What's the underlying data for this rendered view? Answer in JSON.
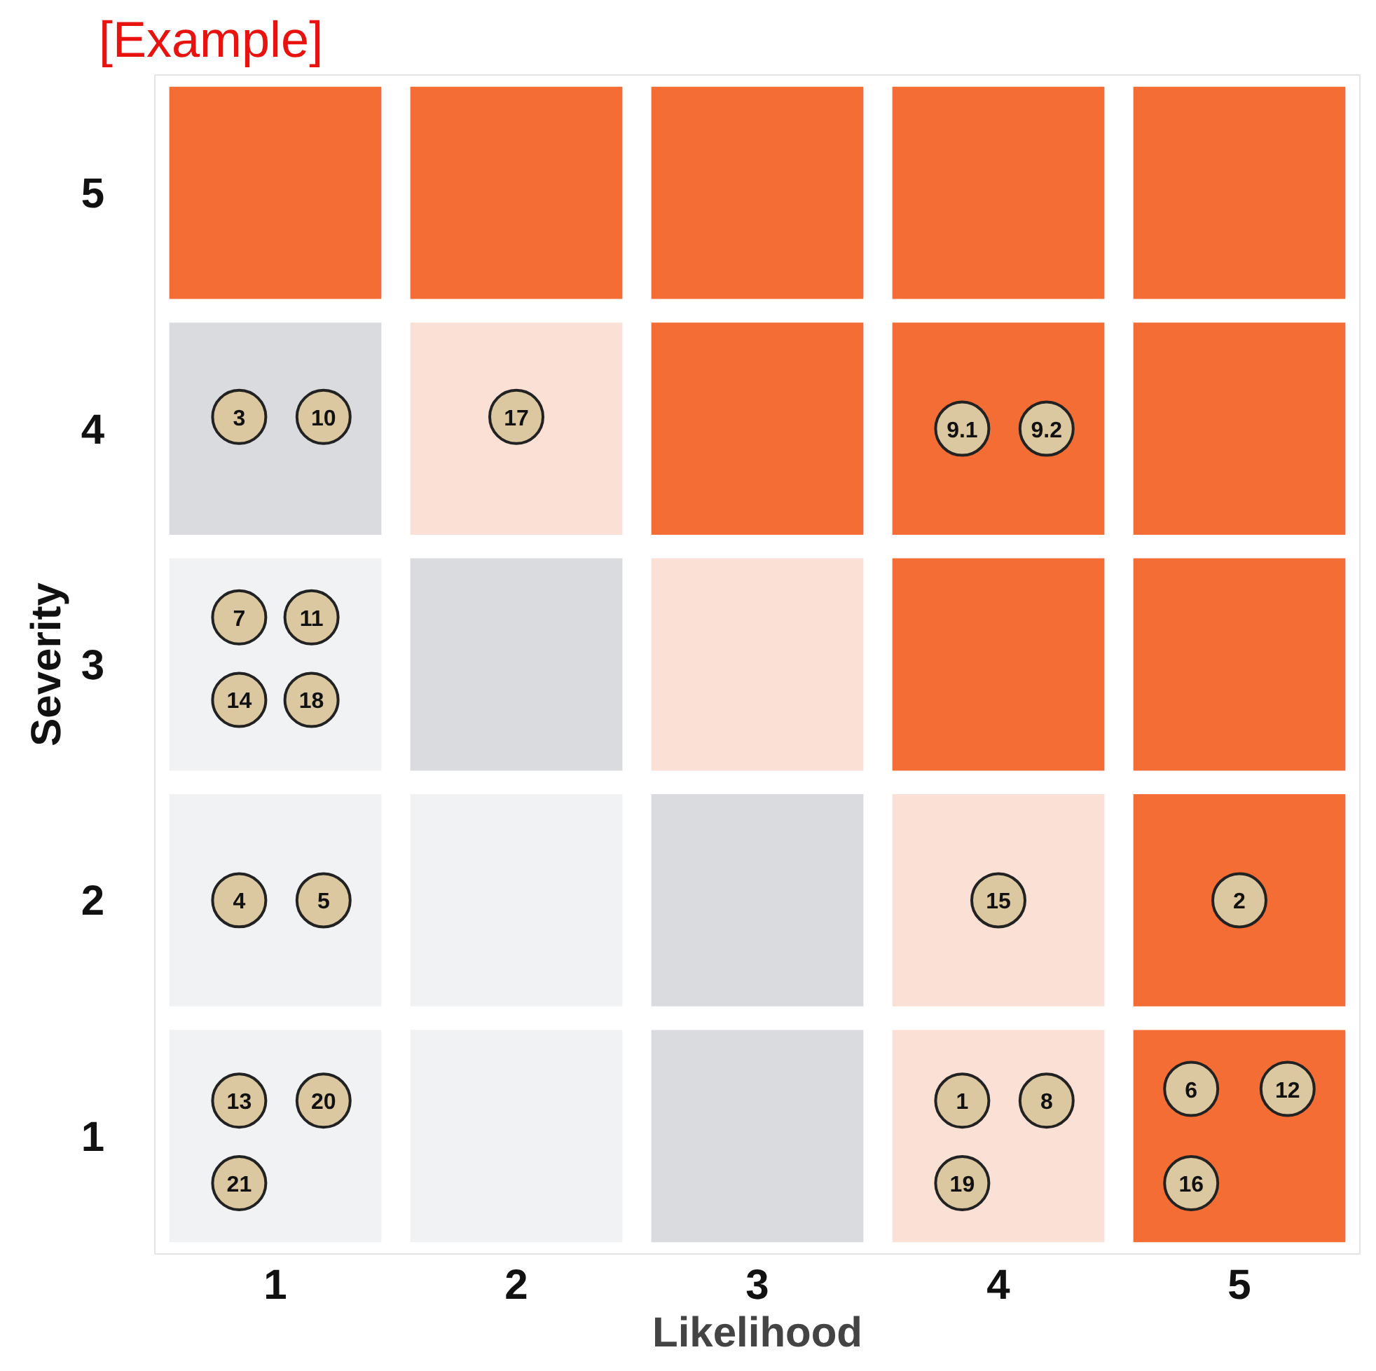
{
  "chart_data": {
    "type": "bar",
    "title": "[Example]",
    "xlabel": "Likelihood",
    "ylabel": "Severity",
    "xlim": [
      0.5,
      5.5
    ],
    "ylim": [
      0.5,
      5.5
    ],
    "xticks": [
      1,
      2,
      3,
      4,
      5
    ],
    "yticks": [
      1,
      2,
      3,
      4,
      5
    ],
    "grid": false,
    "marker": "circle",
    "series": [
      {
        "x": [
          1,
          2,
          3,
          4,
          5
        ],
        "base": [
          4.55,
          4.55,
          4.55,
          4.55,
          4.55
        ],
        "values": [
          0.9,
          0.9,
          0.9,
          0.9,
          0.9
        ],
        "colors": [
          "#f46d35",
          "#f46d35",
          "#f46d35",
          "#f46d35",
          "#f46d35"
        ]
      },
      {
        "x": [
          1,
          2,
          3,
          4,
          5
        ],
        "base": [
          3.55,
          3.55,
          3.55,
          3.55,
          3.55
        ],
        "values": [
          0.9,
          0.9,
          0.9,
          0.9,
          0.9
        ],
        "colors": [
          "#dadbdf",
          "#fae0d5",
          "#f46d35",
          "#f46d35",
          "#f46d35"
        ]
      },
      {
        "x": [
          1,
          2,
          3,
          4,
          5
        ],
        "base": [
          2.55,
          2.55,
          2.55,
          2.55,
          2.55
        ],
        "values": [
          0.9,
          0.9,
          0.9,
          0.9,
          0.9
        ],
        "colors": [
          "#f1f2f4",
          "#dadbdf",
          "#fae0d5",
          "#f46d35",
          "#f46d35"
        ]
      },
      {
        "x": [
          1,
          2,
          3,
          4,
          5
        ],
        "base": [
          1.55,
          1.55,
          1.55,
          1.55,
          1.55
        ],
        "values": [
          0.9,
          0.9,
          0.9,
          0.9,
          0.9
        ],
        "colors": [
          "#f1f2f4",
          "#f1f2f4",
          "#dadbdf",
          "#fae0d5",
          "#f46d35"
        ]
      },
      {
        "x": [
          1,
          2,
          3,
          4,
          5
        ],
        "base": [
          0.55,
          0.55,
          0.55,
          0.55,
          0.55
        ],
        "values": [
          0.9,
          0.9,
          0.9,
          0.9,
          0.9
        ],
        "colors": [
          "#f1f2f4",
          "#f1f2f4",
          "#dadbdf",
          "#fae0d5",
          "#f46d35"
        ]
      },
      {
        "type": "scatter",
        "name": "3",
        "color": "#dcc8a0",
        "x": [
          0.85
        ],
        "values": [
          4.05
        ]
      },
      {
        "type": "scatter",
        "name": "10",
        "color": "#dcc8a0",
        "x": [
          1.2
        ],
        "values": [
          4.05
        ]
      },
      {
        "type": "scatter",
        "name": "17",
        "color": "#dcc8a0",
        "x": [
          2.0
        ],
        "values": [
          4.05
        ]
      },
      {
        "type": "scatter",
        "name": "9.1",
        "color": "#dcc8a0",
        "x": [
          3.85
        ],
        "values": [
          4.0
        ]
      },
      {
        "type": "scatter",
        "name": "9.2",
        "color": "#dcc8a0",
        "x": [
          4.2
        ],
        "values": [
          4.0
        ]
      },
      {
        "type": "scatter",
        "name": "7",
        "color": "#dcc8a0",
        "x": [
          0.85
        ],
        "values": [
          3.2
        ]
      },
      {
        "type": "scatter",
        "name": "11",
        "color": "#dcc8a0",
        "x": [
          1.15
        ],
        "values": [
          3.2
        ]
      },
      {
        "type": "scatter",
        "name": "14",
        "color": "#dcc8a0",
        "x": [
          0.85
        ],
        "values": [
          2.85
        ]
      },
      {
        "type": "scatter",
        "name": "18",
        "color": "#dcc8a0",
        "x": [
          1.15
        ],
        "values": [
          2.85
        ]
      },
      {
        "type": "scatter",
        "name": "4",
        "color": "#dcc8a0",
        "x": [
          0.85
        ],
        "values": [
          2.0
        ]
      },
      {
        "type": "scatter",
        "name": "5",
        "color": "#dcc8a0",
        "x": [
          1.2
        ],
        "values": [
          2.0
        ]
      },
      {
        "type": "scatter",
        "name": "15",
        "color": "#dcc8a0",
        "x": [
          4.0
        ],
        "values": [
          2.0
        ]
      },
      {
        "type": "scatter",
        "name": "2",
        "color": "#dcc8a0",
        "x": [
          5.0
        ],
        "values": [
          2.0
        ]
      },
      {
        "type": "scatter",
        "name": "13",
        "color": "#dcc8a0",
        "x": [
          0.85
        ],
        "values": [
          1.15
        ]
      },
      {
        "type": "scatter",
        "name": "20",
        "color": "#dcc8a0",
        "x": [
          1.2
        ],
        "values": [
          1.15
        ]
      },
      {
        "type": "scatter",
        "name": "21",
        "color": "#dcc8a0",
        "x": [
          0.85
        ],
        "values": [
          0.8
        ]
      },
      {
        "type": "scatter",
        "name": "1",
        "color": "#dcc8a0",
        "x": [
          3.85
        ],
        "values": [
          1.15
        ]
      },
      {
        "type": "scatter",
        "name": "8",
        "color": "#dcc8a0",
        "x": [
          4.2
        ],
        "values": [
          1.15
        ]
      },
      {
        "type": "scatter",
        "name": "19",
        "color": "#dcc8a0",
        "x": [
          3.85
        ],
        "values": [
          0.8
        ]
      },
      {
        "type": "scatter",
        "name": "6",
        "color": "#dcc8a0",
        "x": [
          4.8
        ],
        "values": [
          1.2
        ]
      },
      {
        "type": "scatter",
        "name": "12",
        "color": "#dcc8a0",
        "x": [
          5.2
        ],
        "values": [
          1.2
        ]
      },
      {
        "type": "scatter",
        "name": "16",
        "color": "#dcc8a0",
        "x": [
          4.8
        ],
        "values": [
          0.8
        ]
      }
    ]
  }
}
